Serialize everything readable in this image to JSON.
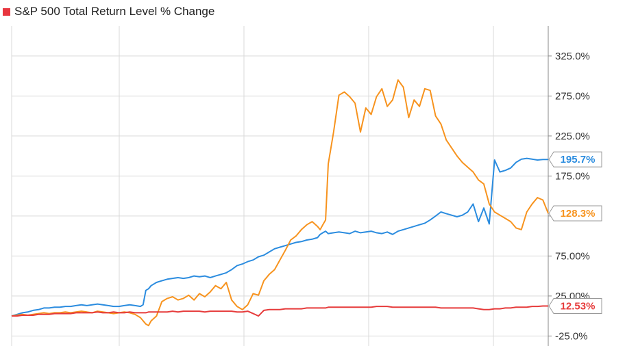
{
  "colors": {
    "legend_swatch": "#e8363f",
    "blue": "#2b8cdf",
    "orange": "#f7931e",
    "red": "#e63b3b",
    "grid": "#d9d9d9",
    "axis": "#888888"
  },
  "chart_data": {
    "type": "line",
    "title": "S&P 500 Total Return Level % Change",
    "ylim": [
      -37.5,
      362.5
    ],
    "y_ticks": [
      -25,
      25,
      75,
      125,
      175,
      225,
      275,
      325
    ],
    "y_tick_labels": [
      "-25.0%",
      "25.00%",
      "75.00%",
      "125.0%",
      "175.0%",
      "225.0%",
      "275.0%",
      "325.0%"
    ],
    "x": [
      0,
      0.01,
      0.02,
      0.03,
      0.04,
      0.05,
      0.06,
      0.07,
      0.08,
      0.09,
      0.1,
      0.11,
      0.12,
      0.13,
      0.14,
      0.15,
      0.16,
      0.17,
      0.18,
      0.19,
      0.2,
      0.21,
      0.22,
      0.23,
      0.24,
      0.245,
      0.25,
      0.255,
      0.26,
      0.27,
      0.28,
      0.29,
      0.3,
      0.31,
      0.32,
      0.33,
      0.34,
      0.35,
      0.36,
      0.37,
      0.38,
      0.39,
      0.4,
      0.41,
      0.42,
      0.43,
      0.44,
      0.45,
      0.46,
      0.47,
      0.48,
      0.49,
      0.5,
      0.51,
      0.52,
      0.53,
      0.54,
      0.55,
      0.56,
      0.57,
      0.575,
      0.58,
      0.585,
      0.59,
      0.6,
      0.61,
      0.62,
      0.63,
      0.64,
      0.65,
      0.66,
      0.67,
      0.68,
      0.69,
      0.7,
      0.71,
      0.72,
      0.73,
      0.74,
      0.75,
      0.76,
      0.77,
      0.78,
      0.79,
      0.8,
      0.81,
      0.82,
      0.83,
      0.84,
      0.85,
      0.86,
      0.87,
      0.88,
      0.89,
      0.9,
      0.91,
      0.92,
      0.93,
      0.94,
      0.95,
      0.96,
      0.97,
      0.98,
      0.99,
      1.0
    ],
    "series": [
      {
        "name": "",
        "color": "#2b8cdf",
        "end_label": "195.7%",
        "values": [
          0,
          2,
          4,
          5,
          7,
          8,
          10,
          10,
          11,
          11,
          12,
          12,
          13,
          14,
          13,
          14,
          15,
          14,
          13,
          12,
          12,
          13,
          14,
          13,
          12,
          14,
          32,
          34,
          38,
          42,
          44,
          46,
          47,
          48,
          47,
          48,
          50,
          49,
          50,
          48,
          50,
          52,
          54,
          58,
          63,
          65,
          68,
          70,
          74,
          76,
          80,
          84,
          86,
          88,
          90,
          92,
          93,
          95,
          96,
          98,
          102,
          104,
          106,
          103,
          104,
          105,
          104,
          103,
          106,
          104,
          105,
          106,
          104,
          103,
          105,
          102,
          106,
          108,
          110,
          112,
          114,
          116,
          120,
          125,
          130,
          128,
          126,
          124,
          126,
          130,
          140,
          118,
          135,
          115,
          195,
          180,
          182,
          185,
          192,
          196,
          197,
          196,
          195,
          195.7,
          195.7
        ]
      },
      {
        "name": "",
        "color": "#f7931e",
        "end_label": "128.3%",
        "values": [
          0,
          1,
          2,
          1,
          2,
          3,
          4,
          3,
          4,
          4,
          5,
          4,
          5,
          6,
          5,
          4,
          6,
          5,
          4,
          3,
          4,
          5,
          4,
          2,
          -2,
          -6,
          -10,
          -12,
          -6,
          0,
          18,
          22,
          24,
          20,
          22,
          26,
          20,
          28,
          24,
          30,
          38,
          34,
          42,
          20,
          12,
          8,
          14,
          28,
          26,
          44,
          52,
          58,
          70,
          82,
          95,
          100,
          108,
          114,
          118,
          112,
          108,
          114,
          120,
          190,
          230,
          276,
          280,
          274,
          266,
          230,
          260,
          252,
          274,
          284,
          262,
          270,
          295,
          286,
          248,
          270,
          262,
          284,
          282,
          250,
          240,
          220,
          210,
          200,
          192,
          186,
          180,
          170,
          165,
          140,
          130,
          126,
          122,
          118,
          110,
          108,
          130,
          140,
          148,
          145,
          128.3
        ]
      },
      {
        "name": "",
        "color": "#e63b3b",
        "end_label": "12.53%",
        "values": [
          0,
          0,
          1,
          1,
          1,
          2,
          2,
          2,
          3,
          3,
          3,
          3,
          4,
          4,
          4,
          4,
          5,
          4,
          4,
          5,
          4,
          4,
          5,
          4,
          4,
          4,
          4,
          5,
          5,
          5,
          5,
          5,
          6,
          5,
          6,
          6,
          6,
          6,
          5,
          6,
          6,
          6,
          6,
          6,
          5,
          5,
          6,
          3,
          0,
          7,
          8,
          8,
          8,
          9,
          9,
          9,
          9,
          10,
          10,
          10,
          10,
          10,
          10,
          11,
          11,
          11,
          11,
          11,
          11,
          11,
          11,
          11,
          12,
          12,
          12,
          11,
          11,
          11,
          11,
          11,
          11,
          11,
          11,
          11,
          10,
          10,
          10,
          10,
          10,
          10,
          10,
          9,
          8,
          8,
          9,
          9,
          10,
          10,
          11,
          11,
          11,
          12,
          12,
          12.5,
          12.53
        ]
      }
    ]
  }
}
